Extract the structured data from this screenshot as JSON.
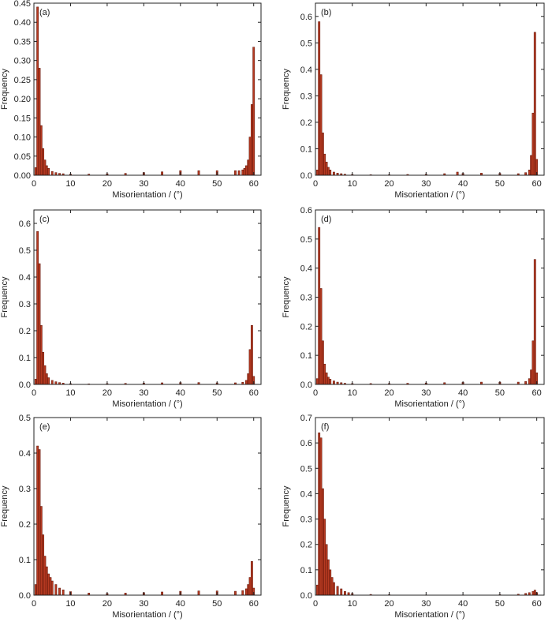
{
  "chart_data": [
    {
      "panel_label": "(a)",
      "type": "bar",
      "xlabel": "Misorientation / (°)",
      "ylabel": "Frequency",
      "xlim": [
        0,
        62
      ],
      "ylim": [
        0,
        0.45
      ],
      "xticks": [
        "0",
        "10",
        "20",
        "30",
        "40",
        "50",
        "60"
      ],
      "yticks": [
        "0.00",
        "0.05",
        "0.10",
        "0.15",
        "0.20",
        "0.25",
        "0.30",
        "0.35",
        "0.40",
        "0.45"
      ],
      "x": [
        0.5,
        1.0,
        1.5,
        2.0,
        2.5,
        3.0,
        3.5,
        4.0,
        5.0,
        6.0,
        7.0,
        8.0,
        10.0,
        15.0,
        20.0,
        25.0,
        30.0,
        35.0,
        40.0,
        45.0,
        50.0,
        55.0,
        56.0,
        57.0,
        57.5,
        58.0,
        58.5,
        59.0,
        59.5,
        60.0
      ],
      "values": [
        0.02,
        0.44,
        0.28,
        0.13,
        0.07,
        0.04,
        0.025,
        0.018,
        0.01,
        0.007,
        0.005,
        0.004,
        0.003,
        0.003,
        0.004,
        0.005,
        0.007,
        0.009,
        0.012,
        0.012,
        0.012,
        0.012,
        0.012,
        0.014,
        0.018,
        0.025,
        0.04,
        0.1,
        0.185,
        0.335
      ]
    },
    {
      "panel_label": "(b)",
      "type": "bar",
      "xlabel": "Misorientation / (°)",
      "ylabel": "Frequency",
      "xlim": [
        0,
        62
      ],
      "ylim": [
        0,
        0.65
      ],
      "xticks": [
        "0",
        "10",
        "20",
        "30",
        "40",
        "50",
        "60"
      ],
      "yticks": [
        "0.0",
        "0.1",
        "0.2",
        "0.3",
        "0.4",
        "0.5",
        "0.6"
      ],
      "x": [
        0.5,
        1.0,
        1.5,
        2.0,
        2.5,
        3.0,
        3.5,
        4.0,
        5.0,
        6.0,
        7.0,
        8.0,
        10.0,
        15.0,
        20.0,
        25.0,
        30.0,
        35.0,
        38.5,
        40.0,
        45.0,
        50.0,
        55.0,
        57.0,
        58.0,
        58.5,
        59.0,
        59.5,
        60.0
      ],
      "values": [
        0.02,
        0.58,
        0.38,
        0.16,
        0.08,
        0.05,
        0.03,
        0.02,
        0.012,
        0.008,
        0.006,
        0.004,
        0.003,
        0.002,
        0.002,
        0.003,
        0.004,
        0.006,
        0.012,
        0.007,
        0.008,
        0.007,
        0.006,
        0.01,
        0.02,
        0.075,
        0.235,
        0.54,
        0.06
      ]
    },
    {
      "panel_label": "(c)",
      "type": "bar",
      "xlabel": "Misorientation / (°)",
      "ylabel": "Frequency",
      "xlim": [
        0,
        62
      ],
      "ylim": [
        0,
        0.65
      ],
      "xticks": [
        "0",
        "10",
        "20",
        "30",
        "40",
        "50",
        "60"
      ],
      "yticks": [
        "0.0",
        "0.1",
        "0.2",
        "0.3",
        "0.4",
        "0.5",
        "0.6"
      ],
      "x": [
        0.5,
        1.0,
        1.5,
        2.0,
        2.5,
        3.0,
        3.5,
        4.0,
        5.0,
        6.0,
        7.0,
        8.0,
        10.0,
        15.0,
        20.0,
        25.0,
        30.0,
        35.0,
        40.0,
        45.0,
        50.0,
        55.0,
        57.0,
        58.0,
        58.5,
        59.0,
        59.5,
        60.0
      ],
      "values": [
        0.02,
        0.57,
        0.45,
        0.22,
        0.12,
        0.07,
        0.04,
        0.025,
        0.015,
        0.01,
        0.007,
        0.005,
        0.003,
        0.002,
        0.003,
        0.004,
        0.005,
        0.006,
        0.007,
        0.007,
        0.006,
        0.006,
        0.008,
        0.015,
        0.04,
        0.13,
        0.22,
        0.03
      ]
    },
    {
      "panel_label": "(d)",
      "type": "bar",
      "xlabel": "Misorientation / (°)",
      "ylabel": "Frequency",
      "xlim": [
        0,
        62
      ],
      "ylim": [
        0,
        0.6
      ],
      "xticks": [
        "0",
        "10",
        "20",
        "30",
        "40",
        "50",
        "60"
      ],
      "yticks": [
        "0.0",
        "0.1",
        "0.2",
        "0.3",
        "0.4",
        "0.5",
        "0.6"
      ],
      "x": [
        0.5,
        1.0,
        1.5,
        2.0,
        2.5,
        3.0,
        3.5,
        4.0,
        5.0,
        6.0,
        7.0,
        8.0,
        10.0,
        15.0,
        20.0,
        25.0,
        30.0,
        35.0,
        40.0,
        45.0,
        50.0,
        55.0,
        57.0,
        58.0,
        58.5,
        59.0,
        59.5,
        60.0
      ],
      "values": [
        0.02,
        0.54,
        0.33,
        0.15,
        0.07,
        0.04,
        0.025,
        0.018,
        0.012,
        0.008,
        0.006,
        0.004,
        0.003,
        0.003,
        0.003,
        0.004,
        0.005,
        0.006,
        0.007,
        0.008,
        0.008,
        0.008,
        0.01,
        0.02,
        0.05,
        0.15,
        0.43,
        0.04
      ]
    },
    {
      "panel_label": "(e)",
      "type": "bar",
      "xlabel": "Misorientation / (°)",
      "ylabel": "Frequency",
      "xlim": [
        0,
        62
      ],
      "ylim": [
        0,
        0.5
      ],
      "xticks": [
        "0",
        "10",
        "20",
        "30",
        "40",
        "50",
        "60"
      ],
      "yticks": [
        "0.0",
        "0.1",
        "0.2",
        "0.3",
        "0.4",
        "0.5"
      ],
      "x": [
        0.5,
        1.0,
        1.5,
        2.0,
        2.5,
        3.0,
        3.5,
        4.0,
        4.5,
        5.0,
        6.0,
        7.0,
        8.0,
        10.0,
        15.0,
        20.0,
        25.0,
        30.0,
        35.0,
        40.0,
        45.0,
        50.0,
        55.0,
        57.0,
        58.0,
        58.5,
        59.0,
        59.5,
        60.0
      ],
      "values": [
        0.03,
        0.42,
        0.41,
        0.25,
        0.17,
        0.11,
        0.08,
        0.06,
        0.05,
        0.04,
        0.03,
        0.02,
        0.015,
        0.01,
        0.006,
        0.005,
        0.006,
        0.007,
        0.009,
        0.011,
        0.012,
        0.012,
        0.011,
        0.013,
        0.018,
        0.03,
        0.05,
        0.095,
        0.02
      ]
    },
    {
      "panel_label": "(f)",
      "type": "bar",
      "xlabel": "Misorientation / (°)",
      "ylabel": "Frequency",
      "xlim": [
        0,
        62
      ],
      "ylim": [
        0,
        0.7
      ],
      "xticks": [
        "0",
        "10",
        "20",
        "30",
        "40",
        "50",
        "60"
      ],
      "yticks": [
        "0.0",
        "0.1",
        "0.2",
        "0.3",
        "0.4",
        "0.5",
        "0.6",
        "0.7"
      ],
      "x": [
        0.5,
        1.0,
        1.5,
        2.0,
        2.5,
        3.0,
        3.5,
        4.0,
        4.5,
        5.0,
        6.0,
        7.0,
        8.0,
        9.0,
        10.0,
        15.0,
        20.0,
        30.0,
        40.0,
        50.0,
        55.0,
        57.0,
        58.0,
        59.0,
        59.5,
        60.0
      ],
      "values": [
        0.04,
        0.64,
        0.62,
        0.42,
        0.3,
        0.2,
        0.14,
        0.1,
        0.07,
        0.05,
        0.035,
        0.025,
        0.015,
        0.01,
        0.007,
        0.003,
        0.002,
        0.001,
        0.001,
        0.002,
        0.004,
        0.007,
        0.01,
        0.015,
        0.02,
        0.01
      ]
    }
  ]
}
